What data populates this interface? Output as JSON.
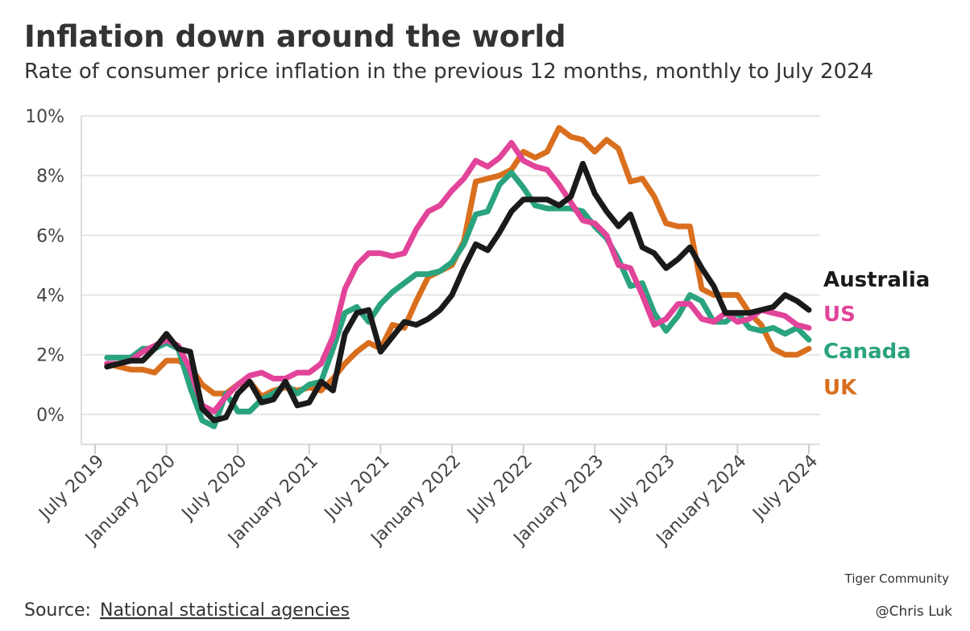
{
  "chart_data": {
    "type": "line",
    "title": "Inflation down around the world",
    "subtitle": "Rate of consumer price inflation in the previous 12 months, monthly to July 2024",
    "source_label": "Source:",
    "source": "National statistical agencies",
    "watermark": [
      "Tiger Community",
      "@Chris Luk"
    ],
    "x": [
      "2019-08",
      "2019-09",
      "2019-10",
      "2019-11",
      "2019-12",
      "2020-01",
      "2020-02",
      "2020-03",
      "2020-04",
      "2020-05",
      "2020-06",
      "2020-07",
      "2020-08",
      "2020-09",
      "2020-10",
      "2020-11",
      "2020-12",
      "2021-01",
      "2021-02",
      "2021-03",
      "2021-04",
      "2021-05",
      "2021-06",
      "2021-07",
      "2021-08",
      "2021-09",
      "2021-10",
      "2021-11",
      "2021-12",
      "2022-01",
      "2022-02",
      "2022-03",
      "2022-04",
      "2022-05",
      "2022-06",
      "2022-07",
      "2022-08",
      "2022-09",
      "2022-10",
      "2022-11",
      "2022-12",
      "2023-01",
      "2023-02",
      "2023-03",
      "2023-04",
      "2023-05",
      "2023-06",
      "2023-07",
      "2023-08",
      "2023-09",
      "2023-10",
      "2023-11",
      "2023-12",
      "2024-01",
      "2024-02",
      "2024-03",
      "2024-04",
      "2024-05",
      "2024-06",
      "2024-07"
    ],
    "xlim": [
      "2019-07",
      "2024-07"
    ],
    "xticks": [
      {
        "value": "2019-07",
        "label": "July 2019"
      },
      {
        "value": "2020-01",
        "label": "January 2020"
      },
      {
        "value": "2020-07",
        "label": "July 2020"
      },
      {
        "value": "2021-01",
        "label": "January 2021"
      },
      {
        "value": "2021-07",
        "label": "July 2021"
      },
      {
        "value": "2022-01",
        "label": "January 2022"
      },
      {
        "value": "2022-07",
        "label": "July 2022"
      },
      {
        "value": "2023-01",
        "label": "January 2023"
      },
      {
        "value": "2023-07",
        "label": "July 2023"
      },
      {
        "value": "2024-01",
        "label": "January 2024"
      },
      {
        "value": "2024-07",
        "label": "July 2024"
      }
    ],
    "ylim": [
      -1,
      10
    ],
    "yticks": [
      {
        "value": 0,
        "label": "0%"
      },
      {
        "value": 2,
        "label": "2%"
      },
      {
        "value": 4,
        "label": "4%"
      },
      {
        "value": 6,
        "label": "6%"
      },
      {
        "value": 8,
        "label": "8%"
      },
      {
        "value": 10,
        "label": "10%"
      }
    ],
    "grid": true,
    "series": [
      {
        "name": "Australia",
        "color": "#1a1a1a",
        "values": [
          1.6,
          1.7,
          1.8,
          1.8,
          2.2,
          2.7,
          2.2,
          2.1,
          0.2,
          -0.2,
          -0.1,
          0.7,
          1.1,
          0.4,
          0.5,
          1.1,
          0.3,
          0.4,
          1.1,
          0.8,
          2.7,
          3.4,
          3.5,
          2.1,
          2.6,
          3.1,
          3.0,
          3.2,
          3.5,
          4.0,
          4.9,
          5.7,
          5.5,
          6.1,
          6.8,
          7.2,
          7.2,
          7.2,
          7.0,
          7.3,
          8.4,
          7.4,
          6.8,
          6.3,
          6.7,
          5.6,
          5.4,
          4.9,
          5.2,
          5.6,
          4.9,
          4.3,
          3.4,
          3.4,
          3.4,
          3.5,
          3.6,
          4.0,
          3.8,
          3.5
        ]
      },
      {
        "name": "US",
        "color": "#e2449a",
        "values": [
          1.7,
          1.7,
          1.8,
          2.1,
          2.3,
          2.5,
          2.3,
          1.5,
          0.3,
          0.1,
          0.6,
          1.0,
          1.3,
          1.4,
          1.2,
          1.2,
          1.4,
          1.4,
          1.7,
          2.6,
          4.2,
          5.0,
          5.4,
          5.4,
          5.3,
          5.4,
          6.2,
          6.8,
          7.0,
          7.5,
          7.9,
          8.5,
          8.3,
          8.6,
          9.1,
          8.5,
          8.3,
          8.2,
          7.7,
          7.1,
          6.5,
          6.4,
          6.0,
          5.0,
          4.9,
          4.0,
          3.0,
          3.2,
          3.7,
          3.7,
          3.2,
          3.1,
          3.4,
          3.1,
          3.2,
          3.5,
          3.4,
          3.3,
          3.0,
          2.9
        ]
      },
      {
        "name": "Canada",
        "color": "#2aa37f",
        "values": [
          1.9,
          1.9,
          1.9,
          2.2,
          2.2,
          2.4,
          2.2,
          0.9,
          -0.2,
          -0.4,
          0.7,
          0.1,
          0.1,
          0.5,
          0.7,
          1.0,
          0.7,
          1.0,
          1.1,
          2.2,
          3.4,
          3.6,
          3.1,
          3.7,
          4.1,
          4.4,
          4.7,
          4.7,
          4.8,
          5.1,
          5.7,
          6.7,
          6.8,
          7.7,
          8.1,
          7.6,
          7.0,
          6.9,
          6.9,
          6.9,
          6.8,
          6.3,
          5.9,
          5.2,
          4.3,
          4.4,
          3.4,
          2.8,
          3.3,
          4.0,
          3.8,
          3.1,
          3.1,
          3.4,
          2.9,
          2.8,
          2.9,
          2.7,
          2.9,
          2.5
        ]
      },
      {
        "name": "UK",
        "color": "#d96f1e",
        "values": [
          1.7,
          1.6,
          1.5,
          1.5,
          1.4,
          1.8,
          1.8,
          1.6,
          1.0,
          0.7,
          0.7,
          1.0,
          1.1,
          0.6,
          0.8,
          0.9,
          0.8,
          0.9,
          0.8,
          1.2,
          1.7,
          2.1,
          2.4,
          2.2,
          3.0,
          2.9,
          3.8,
          4.6,
          4.8,
          5.0,
          5.8,
          7.8,
          7.9,
          8.0,
          8.2,
          8.8,
          8.6,
          8.8,
          9.6,
          9.3,
          9.2,
          8.8,
          9.2,
          8.9,
          7.8,
          7.9,
          7.3,
          6.4,
          6.3,
          6.3,
          4.2,
          4.0,
          4.0,
          4.0,
          3.4,
          3.0,
          2.2,
          2.0,
          2.0,
          2.2
        ]
      }
    ]
  }
}
